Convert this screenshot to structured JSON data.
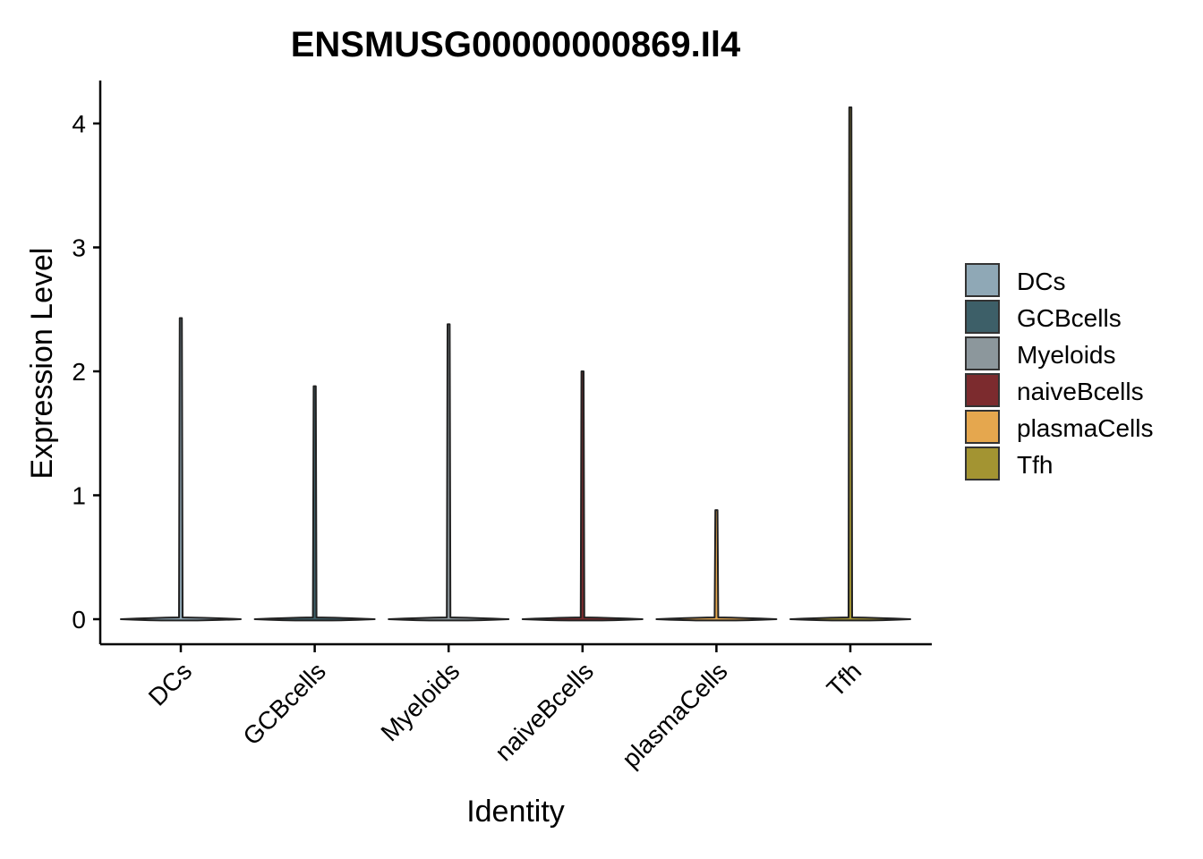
{
  "chart_data": {
    "type": "violin",
    "title": "ENSMUSG00000000869.Il4",
    "xlabel": "Identity",
    "ylabel": "Expression Level",
    "categories": [
      "DCs",
      "GCBcells",
      "Myeloids",
      "naiveBcells",
      "plasmaCells",
      "Tfh"
    ],
    "max_values": [
      2.43,
      1.88,
      2.38,
      2.0,
      0.88,
      4.13
    ],
    "ylim": [
      -0.2,
      4.35
    ],
    "yticks": [
      0,
      1,
      2,
      3,
      4
    ],
    "legend": {
      "position": "right",
      "entries": [
        {
          "label": "DCs",
          "color": "#8FA8B6"
        },
        {
          "label": "GCBcells",
          "color": "#3D5F68"
        },
        {
          "label": "Myeloids",
          "color": "#8C979C"
        },
        {
          "label": "naiveBcells",
          "color": "#7C2B2E"
        },
        {
          "label": "plasmaCells",
          "color": "#E5A74E"
        },
        {
          "label": "Tfh",
          "color": "#A39432"
        }
      ]
    },
    "grid": false
  }
}
